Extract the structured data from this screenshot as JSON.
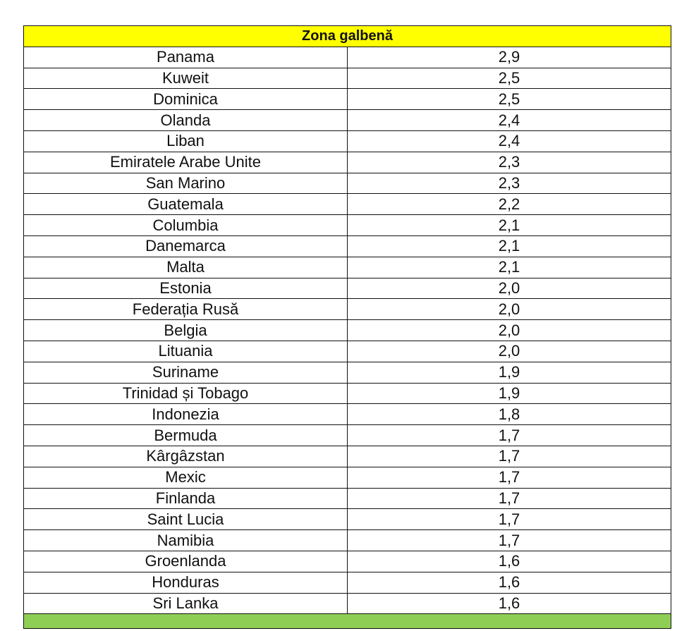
{
  "yellow_zone": {
    "title": "Zona galbenă",
    "color": "#ffff00",
    "rows": [
      {
        "country": "Panama",
        "value": "2,9"
      },
      {
        "country": "Kuweit",
        "value": "2,5"
      },
      {
        "country": "Dominica",
        "value": "2,5"
      },
      {
        "country": "Olanda",
        "value": "2,4"
      },
      {
        "country": "Liban",
        "value": "2,4"
      },
      {
        "country": "Emiratele Arabe Unite",
        "value": "2,3"
      },
      {
        "country": "San Marino",
        "value": "2,3"
      },
      {
        "country": "Guatemala",
        "value": "2,2"
      },
      {
        "country": "Columbia",
        "value": "2,1"
      },
      {
        "country": "Danemarca",
        "value": "2,1"
      },
      {
        "country": "Malta",
        "value": "2,1"
      },
      {
        "country": "Estonia",
        "value": "2,0"
      },
      {
        "country": "Federația Rusă",
        "value": "2,0"
      },
      {
        "country": "Belgia",
        "value": "2,0"
      },
      {
        "country": "Lituania",
        "value": "2,0"
      },
      {
        "country": "Suriname",
        "value": "1,9"
      },
      {
        "country": "Trinidad și Tobago",
        "value": "1,9"
      },
      {
        "country": "Indonezia",
        "value": "1,8"
      },
      {
        "country": "Bermuda",
        "value": "1,7"
      },
      {
        "country": "Kârgâzstan",
        "value": "1,7"
      },
      {
        "country": "Mexic",
        "value": "1,7"
      },
      {
        "country": "Finlanda",
        "value": "1,7"
      },
      {
        "country": "Saint Lucia",
        "value": "1,7"
      },
      {
        "country": "Namibia",
        "value": "1,7"
      },
      {
        "country": "Groenlanda",
        "value": "1,6"
      },
      {
        "country": "Honduras",
        "value": "1,6"
      },
      {
        "country": "Sri Lanka",
        "value": "1,6"
      }
    ]
  },
  "green_zone": {
    "title": "",
    "color": "#8fce55"
  }
}
